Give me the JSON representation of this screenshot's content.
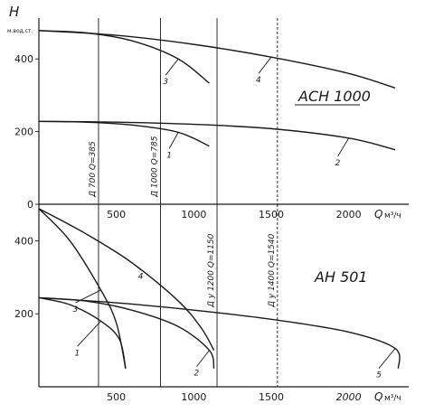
{
  "chart_data": [
    {
      "type": "line",
      "title": "АСН 1000",
      "ylabel": "H",
      "ylabel_unit": "м.вод.ст.",
      "xlabel": "Q",
      "xlabel_unit": "м³/ч",
      "xlim": [
        0,
        2500
      ],
      "ylim": [
        0,
        500
      ],
      "x_ticks": [
        500,
        1000,
        1500,
        2000
      ],
      "y_ticks": [
        0,
        200,
        400
      ],
      "grid": false,
      "series": [
        {
          "name": "1",
          "x": [
            0,
            300,
            600,
            900,
            1100
          ],
          "y": [
            228,
            226,
            218,
            198,
            160
          ]
        },
        {
          "name": "2",
          "x": [
            0,
            500,
            1000,
            1500,
            2000,
            2300
          ],
          "y": [
            228,
            226,
            220,
            208,
            182,
            150
          ]
        },
        {
          "name": "3",
          "x": [
            0,
            300,
            600,
            900,
            1100
          ],
          "y": [
            478,
            472,
            450,
            400,
            333
          ]
        },
        {
          "name": "4",
          "x": [
            0,
            500,
            1000,
            1500,
            2000,
            2300
          ],
          "y": [
            478,
            465,
            440,
            405,
            360,
            320
          ]
        }
      ],
      "markers": [
        {
          "x": 385,
          "label": "Д 700 Q=385"
        },
        {
          "x": 785,
          "label": "Д 1000 Q=785"
        },
        {
          "x": 1150,
          "label": ""
        },
        {
          "x": 1540,
          "label": ""
        }
      ]
    },
    {
      "type": "line",
      "title": "АН 501",
      "xlabel": "Q",
      "xlabel_unit": "м³/ч",
      "xlim": [
        0,
        2500
      ],
      "ylim": [
        0,
        500
      ],
      "x_ticks": [
        500,
        1000,
        1500,
        2000
      ],
      "y_ticks": [
        200,
        400
      ],
      "grid": false,
      "series": [
        {
          "name": "1",
          "x": [
            0,
            200,
            400,
            520,
            560
          ],
          "y": [
            244,
            225,
            180,
            130,
            50
          ]
        },
        {
          "name": "2",
          "x": [
            0,
            300,
            600,
            900,
            1100,
            1130
          ],
          "y": [
            244,
            235,
            210,
            165,
            100,
            50
          ]
        },
        {
          "name": "3",
          "x": [
            0,
            200,
            400,
            500,
            560
          ],
          "y": [
            488,
            400,
            265,
            175,
            50
          ]
        },
        {
          "name": "4",
          "x": [
            0,
            300,
            600,
            900,
            1050,
            1130
          ],
          "y": [
            488,
            420,
            340,
            235,
            160,
            100
          ]
        },
        {
          "name": "5",
          "x": [
            0,
            500,
            1000,
            1500,
            2000,
            2300,
            2320
          ],
          "y": [
            244,
            230,
            210,
            185,
            150,
            105,
            50
          ]
        }
      ],
      "markers": [
        {
          "x": 385,
          "label": ""
        },
        {
          "x": 785,
          "label": ""
        },
        {
          "x": 1150,
          "label": "Д у 1200 Q=1150"
        },
        {
          "x": 1540,
          "label": "Д у 1400 Q=1540"
        }
      ]
    }
  ]
}
